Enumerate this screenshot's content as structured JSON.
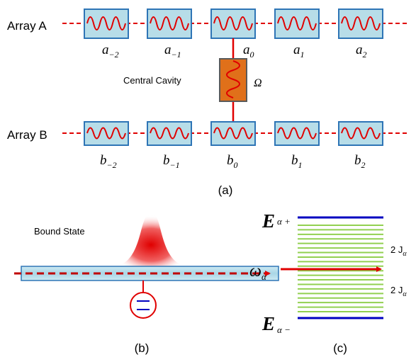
{
  "panel_a": {
    "array_a_label": "Array A",
    "array_b_label": "Array B",
    "central_cavity_label": "Central Cavity",
    "omega_label": "Ω",
    "caption": "(a)",
    "a_sites": [
      {
        "base": "a",
        "sub": "−2"
      },
      {
        "base": "a",
        "sub": "−1"
      },
      {
        "base": "a",
        "sub": "0"
      },
      {
        "base": "a",
        "sub": "1"
      },
      {
        "base": "a",
        "sub": "2"
      }
    ],
    "b_sites": [
      {
        "base": "b",
        "sub": "−2"
      },
      {
        "base": "b",
        "sub": "−1"
      },
      {
        "base": "b",
        "sub": "0"
      },
      {
        "base": "b",
        "sub": "1"
      },
      {
        "base": "b",
        "sub": "2"
      }
    ]
  },
  "panel_b": {
    "bound_state_label": "Bound State",
    "caption": "(b)"
  },
  "panel_c": {
    "caption": "(c)",
    "e_upper": {
      "base": "E",
      "sub": "α +"
    },
    "e_lower": {
      "base": "E",
      "sub": "α −"
    },
    "omega_center": {
      "base": "ω",
      "sub": "α"
    },
    "width_upper": {
      "base": "2 J",
      "sub": "α"
    },
    "width_lower": {
      "base": "2 J",
      "sub": "α"
    },
    "band_line_count": 20
  },
  "colors": {
    "cavity_fill": "#b7dde8",
    "cavity_stroke": "#2e75b6",
    "central_fill": "#e0701a",
    "central_stroke": "#5a5a5a",
    "wave": "#e00000",
    "connector": "#e00000",
    "band_edge": "#0000c0",
    "band_line": "#92d050",
    "arrow": "#e00000",
    "text": "#000000"
  }
}
